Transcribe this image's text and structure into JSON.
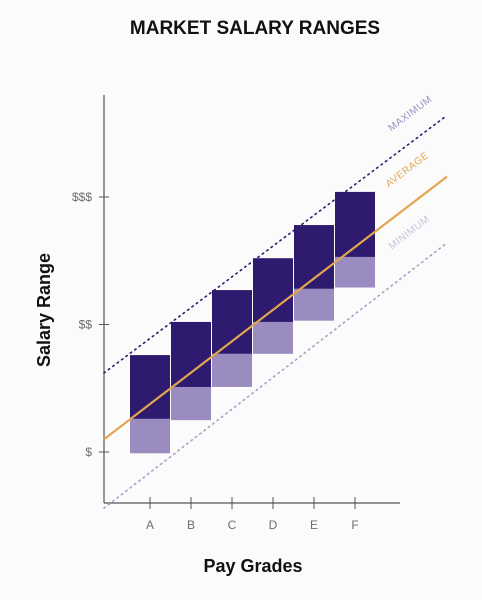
{
  "chart_data": {
    "type": "bar",
    "title": "MARKET SALARY RANGES",
    "xlabel": "Pay Grades",
    "ylabel": "Salary Range",
    "categories": [
      "A",
      "B",
      "C",
      "D",
      "E",
      "F"
    ],
    "y_ticks": [
      {
        "label": "$",
        "value": 1
      },
      {
        "label": "$$",
        "value": 2
      },
      {
        "label": "$$$",
        "value": 3
      }
    ],
    "ylim": [
      0.6,
      3.8
    ],
    "series": [
      {
        "name": "MAXIMUM",
        "values": [
          1.76,
          2.02,
          2.27,
          2.52,
          2.78,
          3.04
        ]
      },
      {
        "name": "AVERAGE",
        "values": [
          1.26,
          1.51,
          1.77,
          2.02,
          2.28,
          2.53
        ]
      },
      {
        "name": "MINIMUM",
        "values": [
          0.99,
          1.25,
          1.51,
          1.77,
          2.03,
          2.29
        ]
      }
    ],
    "trend_lines": [
      {
        "name": "MAXIMUM",
        "style": "dotted",
        "color": "#2e1d6b",
        "start": 1.62,
        "end": 3.64
      },
      {
        "name": "AVERAGE",
        "style": "solid",
        "color": "#e3a64f",
        "start": 1.1,
        "end": 3.16
      },
      {
        "name": "MINIMUM",
        "style": "dotted",
        "color": "#a99fc8",
        "start": 0.56,
        "end": 2.64
      }
    ],
    "colors": {
      "upper_bar": "#2e1a6e",
      "lower_bar": "#9a8cc0",
      "axis": "#555555",
      "max_label": "#9a93c4",
      "avg_label": "#e3a64f",
      "min_label": "#c8c2dc"
    },
    "grid": false,
    "legend": "none"
  }
}
